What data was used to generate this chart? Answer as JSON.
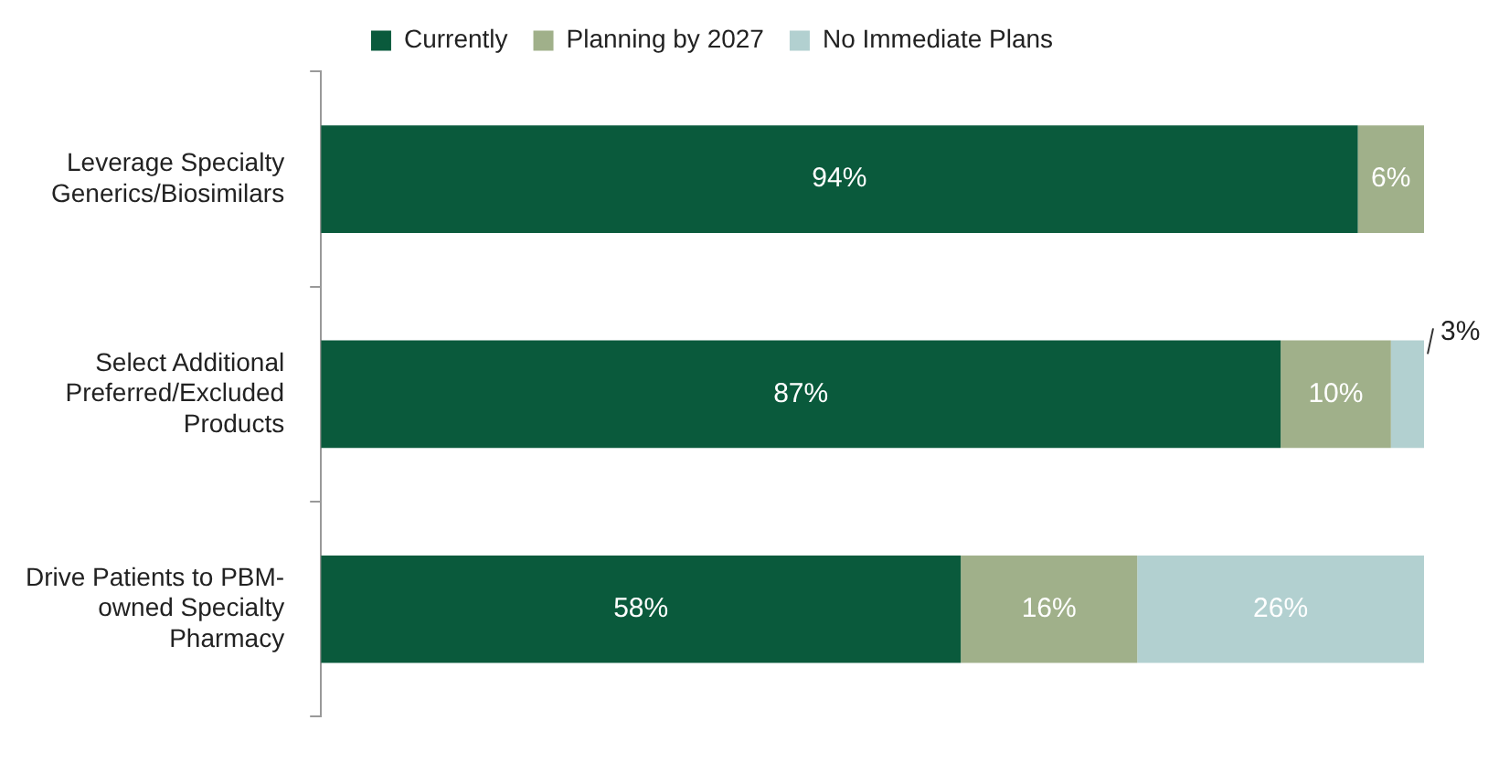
{
  "chart_data": {
    "type": "bar",
    "orientation": "horizontal",
    "stacked": true,
    "categories": [
      "Leverage Specialty Generics/Biosimilars",
      "Select Additional Preferred/Excluded Products",
      "Drive Patients to PBM-owned Specialty Pharmacy"
    ],
    "series": [
      {
        "name": "Currently",
        "color": "#0a5a3c",
        "values": [
          94,
          87,
          58
        ],
        "value_labels": [
          "94%",
          "87%",
          "58%"
        ]
      },
      {
        "name": "Planning by 2027",
        "color": "#a0b08a",
        "values": [
          6,
          10,
          16
        ],
        "value_labels": [
          "6%",
          "10%",
          "16%"
        ]
      },
      {
        "name": "No Immediate Plans",
        "color": "#b2d0d0",
        "values": [
          null,
          3,
          26
        ],
        "value_labels": [
          null,
          "3%",
          "26%"
        ]
      }
    ],
    "tick_labels": "y",
    "legend": "top"
  }
}
